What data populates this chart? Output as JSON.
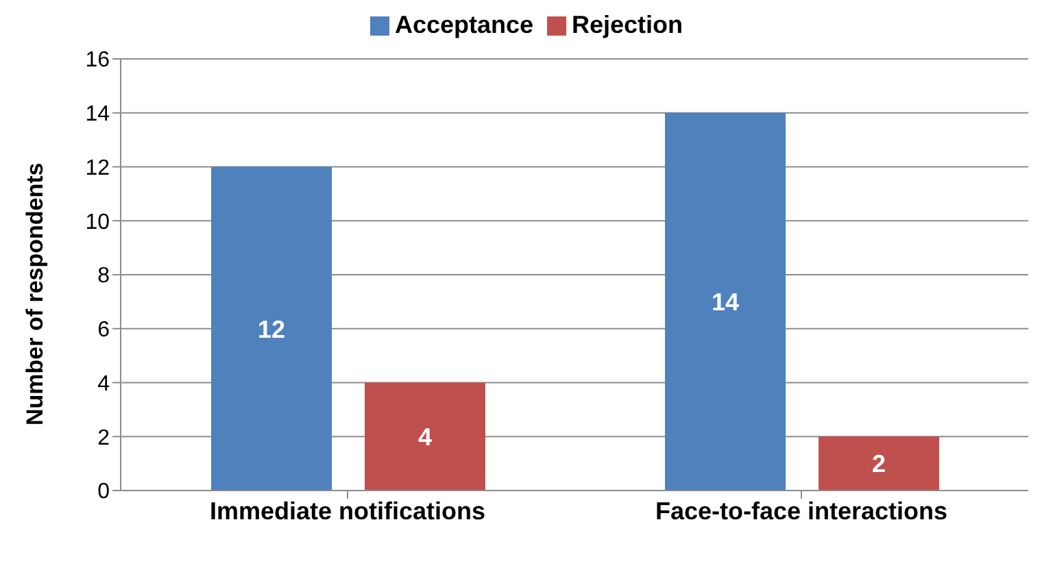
{
  "chart_data": {
    "type": "bar",
    "ylabel": "Number of respondents",
    "categories": [
      "Immediate notifications",
      "Face-to-face interactions"
    ],
    "series": [
      {
        "name": "Acceptance",
        "color": "#4f81bd",
        "values": [
          12,
          14
        ]
      },
      {
        "name": "Rejection",
        "color": "#c0504d",
        "values": [
          4,
          2
        ]
      }
    ],
    "ylim": [
      0,
      16
    ],
    "yticks": [
      0,
      2,
      4,
      6,
      8,
      10,
      12,
      14,
      16
    ],
    "grid": "y",
    "legend": "top",
    "data_labels": true
  }
}
